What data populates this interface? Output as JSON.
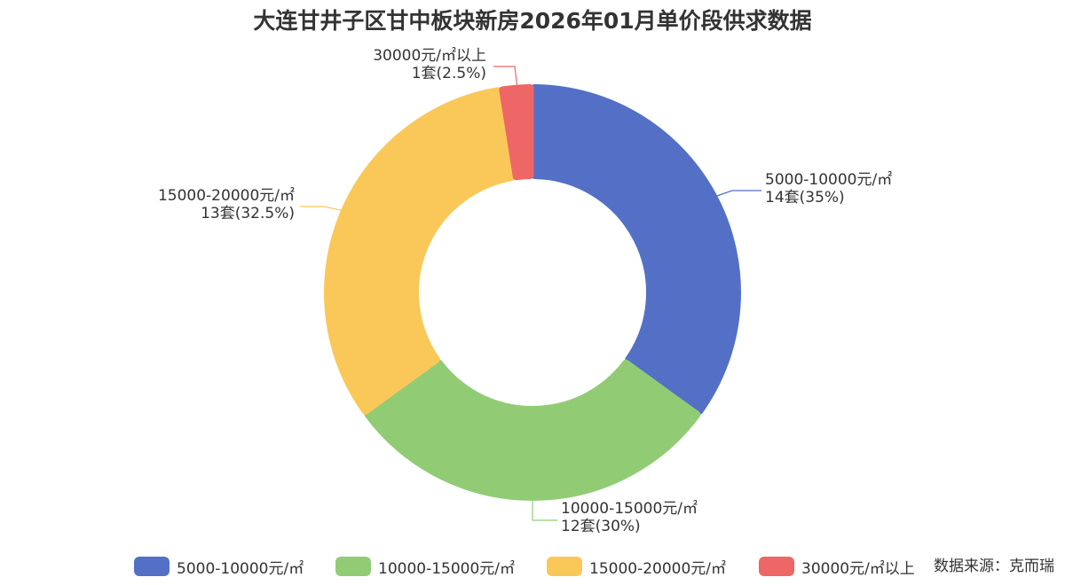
{
  "chart_data": {
    "type": "pie",
    "title": "大连甘井子区甘中板块新房2026年01月单价段供求数据",
    "categories": [
      "5000-10000元/㎡",
      "10000-15000元/㎡",
      "15000-20000元/㎡",
      "30000元/㎡以上"
    ],
    "values": [
      14,
      12,
      13,
      1
    ],
    "percent_labels": [
      "14套(35%)",
      "12套(30%)",
      "13套(32.5%)",
      "1套(2.5%)"
    ],
    "colors": [
      "#5470c6",
      "#91cc75",
      "#fac858",
      "#ee6666"
    ],
    "legend_position": "bottom"
  },
  "source_text": "数据来源：克而瑞"
}
